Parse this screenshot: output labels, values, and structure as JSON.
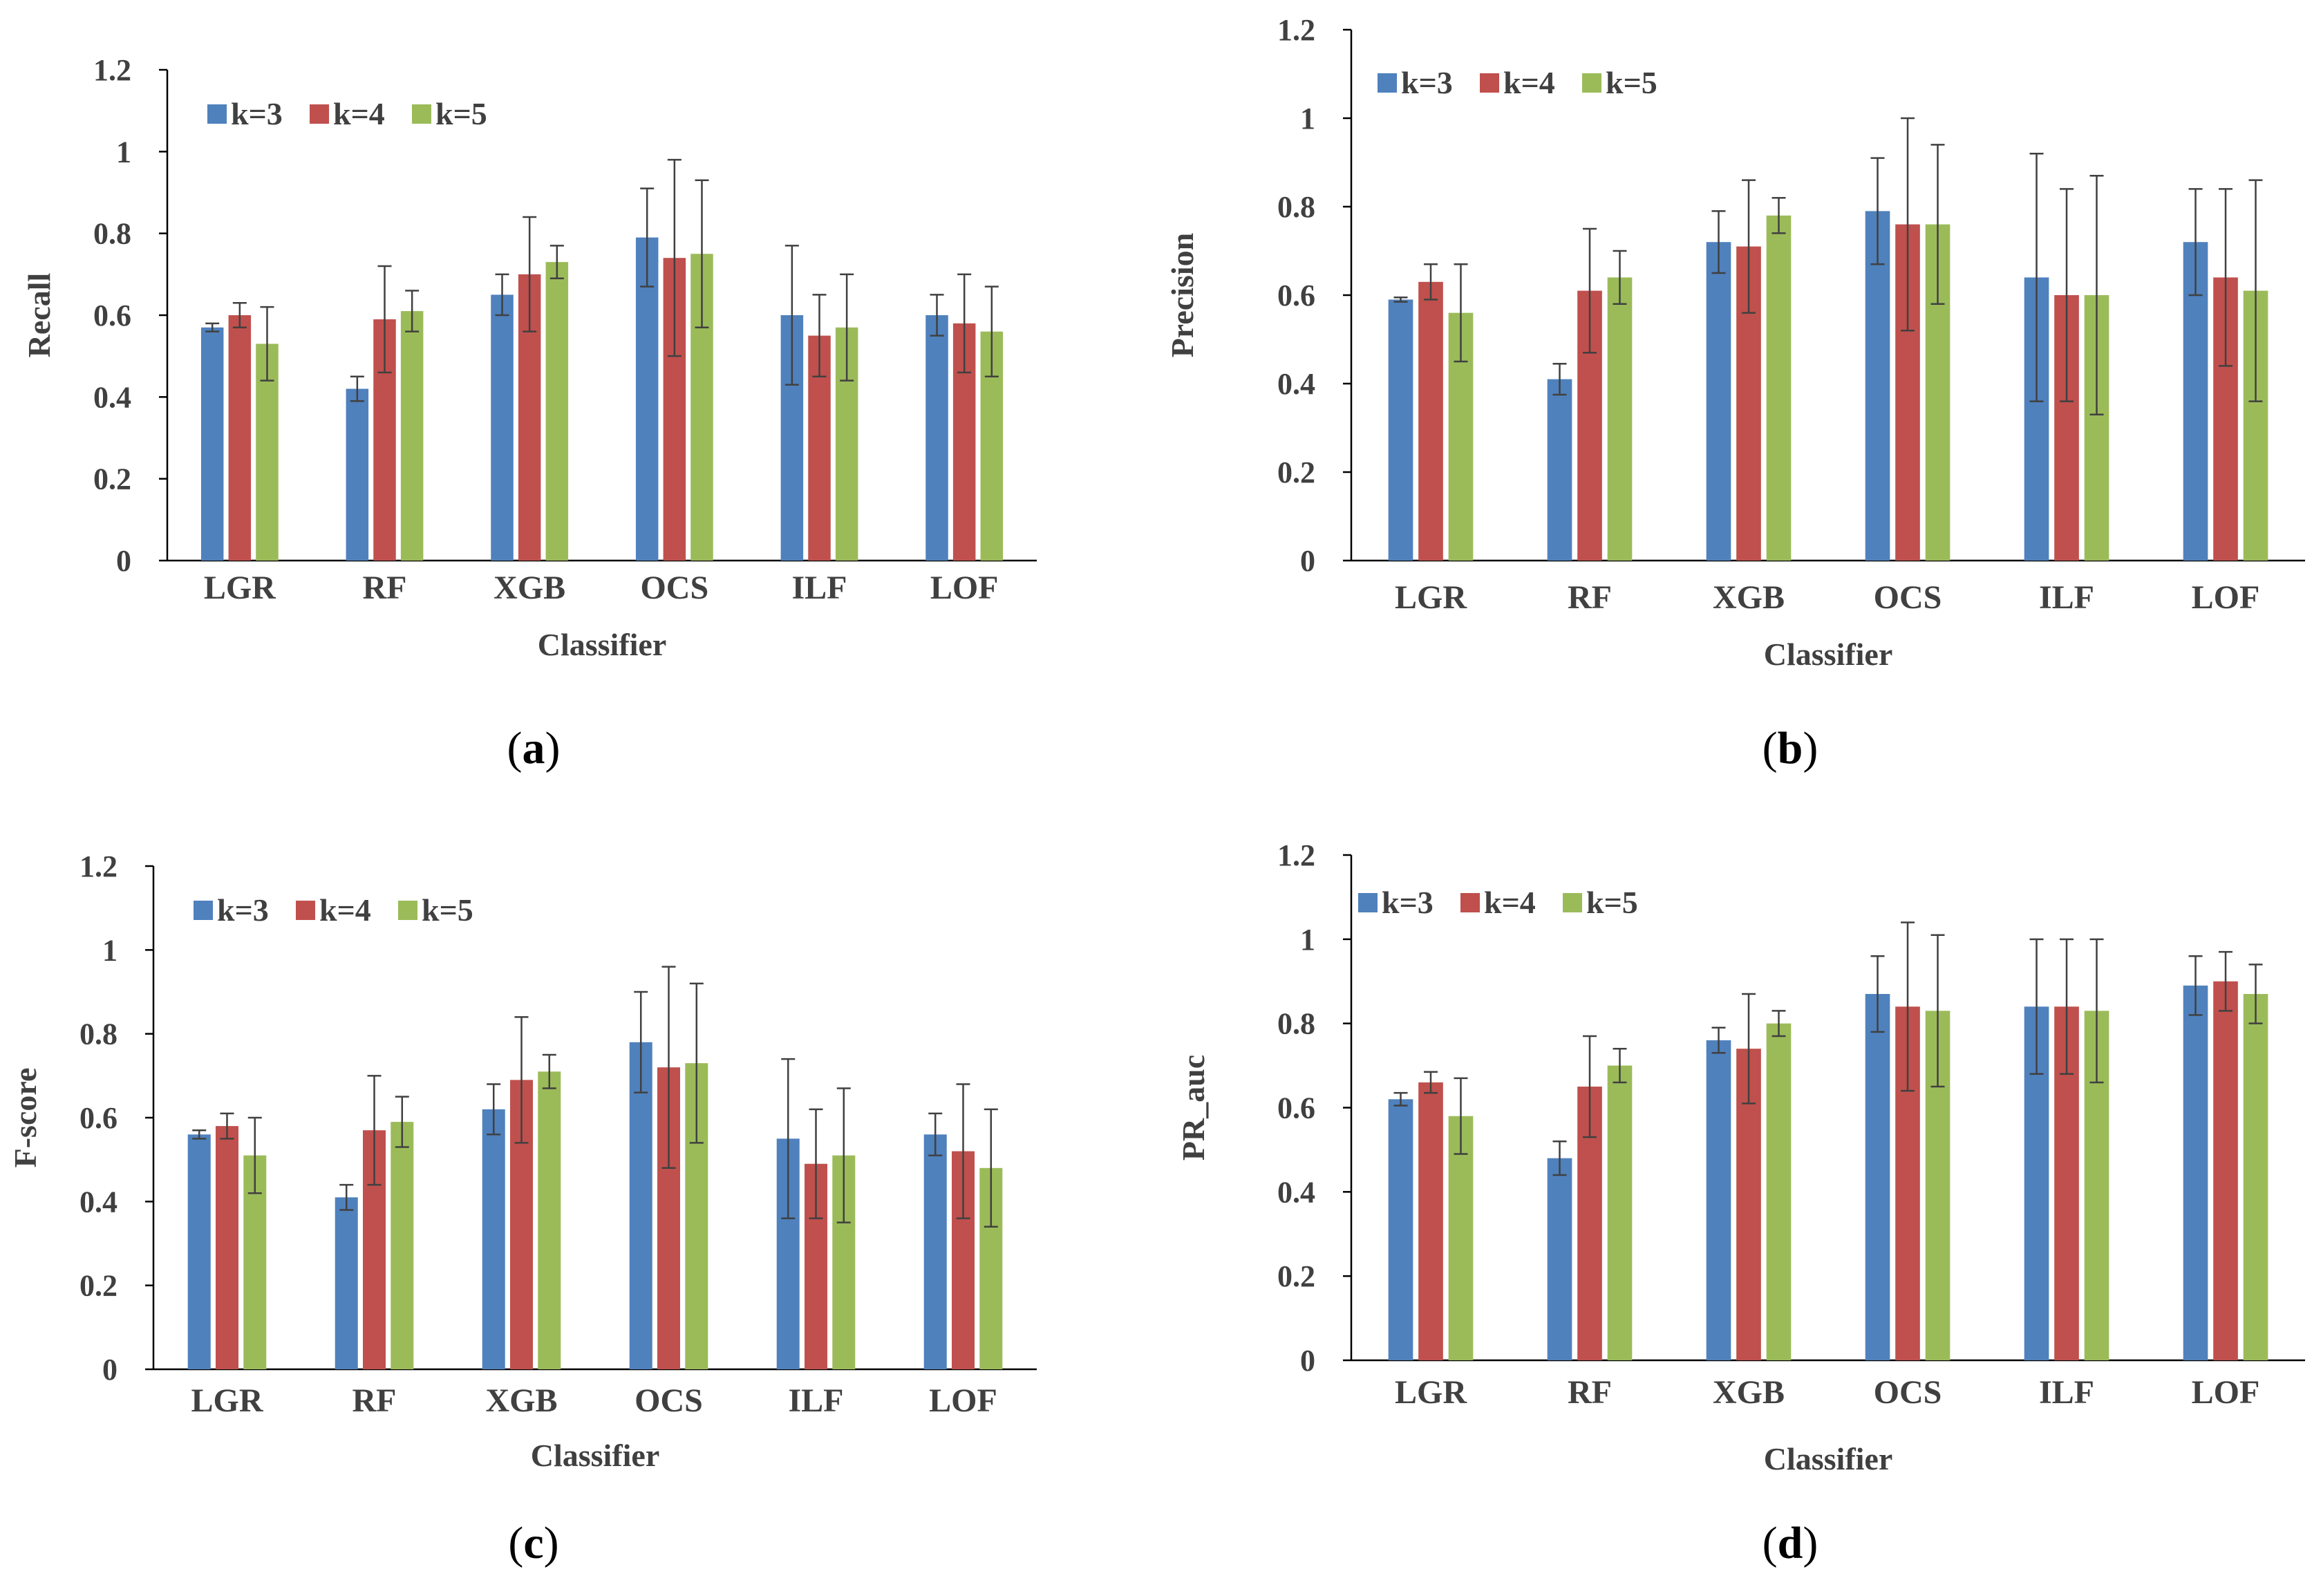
{
  "colors": {
    "k3": "#4F81BD",
    "k4": "#C0504D",
    "k5": "#9BBB59",
    "axis": "#000000",
    "errorbar": "#404040"
  },
  "chart_data": [
    {
      "type": "bar",
      "panel_label": "a",
      "title": "",
      "xlabel": "Classifier",
      "ylabel": "Recall",
      "ylim": [
        0,
        1.2
      ],
      "yticks": [
        "0",
        "0.2",
        "0.4",
        "0.6",
        "0.8",
        "1",
        "1.2"
      ],
      "categories": [
        "LGR",
        "RF",
        "XGB",
        "OCS",
        "ILF",
        "LOF"
      ],
      "legend_position": "top-left",
      "series": [
        {
          "name": "k=3",
          "values": [
            0.57,
            0.42,
            0.65,
            0.79,
            0.6,
            0.6
          ],
          "errors": [
            0.01,
            0.03,
            0.05,
            0.12,
            0.17,
            0.05
          ]
        },
        {
          "name": "k=4",
          "values": [
            0.6,
            0.59,
            0.7,
            0.74,
            0.55,
            0.58
          ],
          "errors": [
            0.03,
            0.13,
            0.14,
            0.24,
            0.1,
            0.12
          ]
        },
        {
          "name": "k=5",
          "values": [
            0.53,
            0.61,
            0.73,
            0.75,
            0.57,
            0.56
          ],
          "errors": [
            0.09,
            0.05,
            0.04,
            0.18,
            0.13,
            0.11
          ]
        }
      ]
    },
    {
      "type": "bar",
      "panel_label": "b",
      "title": "",
      "xlabel": "Classifier",
      "ylabel": "Precision",
      "ylim": [
        0,
        1.2
      ],
      "yticks": [
        "0",
        "0.2",
        "0.4",
        "0.6",
        "0.8",
        "1",
        "1.2"
      ],
      "categories": [
        "LGR",
        "RF",
        "XGB",
        "OCS",
        "ILF",
        "LOF"
      ],
      "legend_position": "top-left",
      "series": [
        {
          "name": "k=3",
          "values": [
            0.59,
            0.41,
            0.72,
            0.79,
            0.64,
            0.72
          ],
          "errors": [
            0.005,
            0.035,
            0.07,
            0.12,
            0.28,
            0.12
          ]
        },
        {
          "name": "k=4",
          "values": [
            0.63,
            0.61,
            0.71,
            0.76,
            0.6,
            0.64
          ],
          "errors": [
            0.04,
            0.14,
            0.15,
            0.24,
            0.24,
            0.2
          ]
        },
        {
          "name": "k=5",
          "values": [
            0.56,
            0.64,
            0.78,
            0.76,
            0.6,
            0.61
          ],
          "errors": [
            0.11,
            0.06,
            0.04,
            0.18,
            0.27,
            0.25
          ]
        }
      ]
    },
    {
      "type": "bar",
      "panel_label": "c",
      "title": "",
      "xlabel": "Classifier",
      "ylabel": "F-score",
      "ylim": [
        0,
        1.2
      ],
      "yticks": [
        "0",
        "0.2",
        "0.4",
        "0.6",
        "0.8",
        "1",
        "1.2"
      ],
      "categories": [
        "LGR",
        "RF",
        "XGB",
        "OCS",
        "ILF",
        "LOF"
      ],
      "legend_position": "top-left",
      "series": [
        {
          "name": "k=3",
          "values": [
            0.56,
            0.41,
            0.62,
            0.78,
            0.55,
            0.56
          ],
          "errors": [
            0.01,
            0.03,
            0.06,
            0.12,
            0.19,
            0.05
          ]
        },
        {
          "name": "k=4",
          "values": [
            0.58,
            0.57,
            0.69,
            0.72,
            0.49,
            0.52
          ],
          "errors": [
            0.03,
            0.13,
            0.15,
            0.24,
            0.13,
            0.16
          ]
        },
        {
          "name": "k=5",
          "values": [
            0.51,
            0.59,
            0.71,
            0.73,
            0.51,
            0.48
          ],
          "errors": [
            0.09,
            0.06,
            0.04,
            0.19,
            0.16,
            0.14
          ]
        }
      ]
    },
    {
      "type": "bar",
      "panel_label": "d",
      "title": "",
      "xlabel": "Classifier",
      "ylabel": "PR_auc",
      "ylim": [
        0,
        1.2
      ],
      "yticks": [
        "0",
        "0.2",
        "0.4",
        "0.6",
        "0.8",
        "1",
        "1.2"
      ],
      "categories": [
        "LGR",
        "RF",
        "XGB",
        "OCS",
        "ILF",
        "LOF"
      ],
      "legend_position": "top-left",
      "series": [
        {
          "name": "k=3",
          "values": [
            0.62,
            0.48,
            0.76,
            0.87,
            0.84,
            0.89
          ],
          "errors": [
            0.015,
            0.04,
            0.03,
            0.09,
            0.16,
            0.07
          ]
        },
        {
          "name": "k=4",
          "values": [
            0.66,
            0.65,
            0.74,
            0.84,
            0.84,
            0.9
          ],
          "errors": [
            0.025,
            0.12,
            0.13,
            0.2,
            0.16,
            0.07
          ]
        },
        {
          "name": "k=5",
          "values": [
            0.58,
            0.7,
            0.8,
            0.83,
            0.83,
            0.87
          ],
          "errors": [
            0.09,
            0.04,
            0.03,
            0.18,
            0.17,
            0.07
          ]
        }
      ]
    }
  ]
}
